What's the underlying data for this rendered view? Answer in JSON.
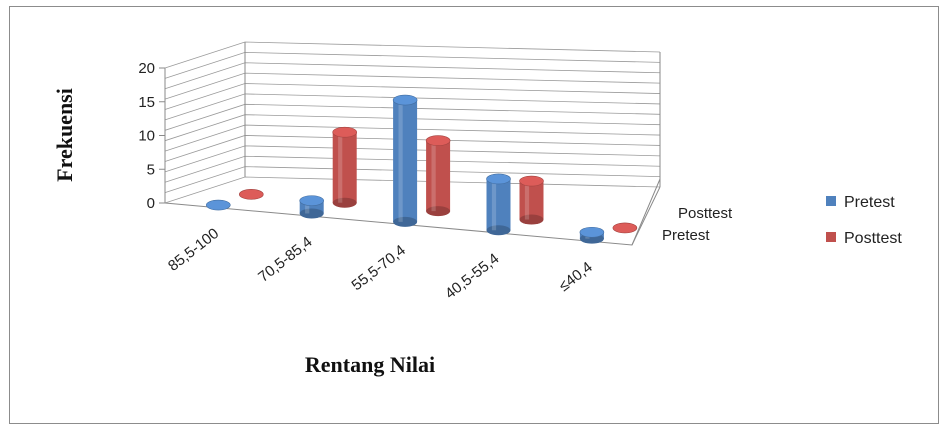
{
  "chart_data": {
    "type": "bar",
    "style": "3d-cylinder",
    "categories": [
      "85,5-100",
      "70,5-85,4",
      "55,5-70,4",
      "40,5-55,4",
      "≤40,4"
    ],
    "series": [
      {
        "name": "Pretest",
        "values": [
          0,
          2,
          19,
          8,
          1
        ],
        "color": "#4f81bd"
      },
      {
        "name": "Posttest",
        "values": [
          0,
          11,
          11,
          6,
          0
        ],
        "color": "#c0504d"
      }
    ],
    "depth_labels": [
      "Posttest",
      "Pretest"
    ],
    "xlabel": "Rentang Nilai",
    "ylabel": "Frekuensi",
    "ylim": [
      0,
      20
    ],
    "yticks": [
      0,
      5,
      10,
      15,
      20
    ],
    "grid": true,
    "legend_position": "right"
  }
}
